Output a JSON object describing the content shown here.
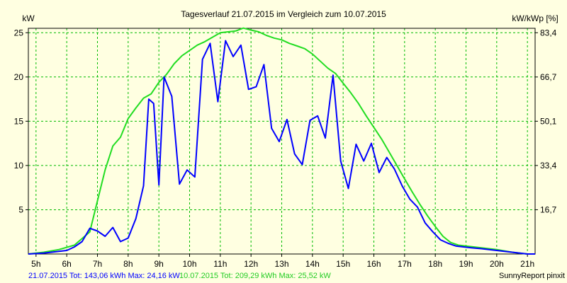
{
  "chart_data": {
    "type": "line",
    "title": "Tagesverlauf 21.07.2015 im Vergleich zum 10.07.2015",
    "y_left_unit": "kW",
    "y_right_unit": "kW/kWp [%]",
    "xlim": [
      4.75,
      21.25
    ],
    "ylim": [
      0,
      25.5
    ],
    "x_ticks": [
      5,
      6,
      7,
      8,
      9,
      10,
      11,
      12,
      13,
      14,
      15,
      16,
      17,
      18,
      19,
      20,
      21
    ],
    "x_tick_labels": [
      "5h",
      "6h",
      "7h",
      "8h",
      "9h",
      "10h",
      "11h",
      "12h",
      "13h",
      "14h",
      "15h",
      "16h",
      "17h",
      "18h",
      "19h",
      "20h",
      "21h"
    ],
    "y_left_ticks": [
      5,
      10,
      15,
      20,
      25
    ],
    "y_left_tick_labels": [
      "5",
      "10",
      "15",
      "20",
      "25"
    ],
    "y_right_ticks": [
      5,
      10,
      15,
      20,
      25
    ],
    "y_right_tick_labels": [
      "16,7",
      "33,4",
      "50,1",
      "66,7",
      "83,4"
    ],
    "grid": true,
    "series": [
      {
        "name": "21.07.2015",
        "color": "#0000ff",
        "x": [
          4.75,
          5.25,
          5.5,
          5.75,
          6.0,
          6.25,
          6.5,
          6.75,
          7.0,
          7.25,
          7.5,
          7.75,
          8.0,
          8.25,
          8.5,
          8.67,
          8.83,
          9.0,
          9.17,
          9.42,
          9.67,
          9.92,
          10.17,
          10.42,
          10.67,
          10.92,
          11.17,
          11.42,
          11.67,
          11.92,
          12.17,
          12.42,
          12.67,
          12.92,
          13.17,
          13.42,
          13.67,
          13.92,
          14.17,
          14.42,
          14.67,
          14.92,
          15.17,
          15.42,
          15.67,
          15.92,
          16.17,
          16.42,
          16.67,
          16.92,
          17.17,
          17.42,
          17.67,
          17.92,
          18.17,
          18.42,
          18.67,
          18.92,
          19.17,
          19.5,
          19.75,
          20.0,
          20.25,
          20.5,
          20.75,
          21.0,
          21.25
        ],
        "values": [
          0,
          0.1,
          0.2,
          0.3,
          0.4,
          0.8,
          1.4,
          2.9,
          2.6,
          2.0,
          3.0,
          1.4,
          1.8,
          4.0,
          7.7,
          17.5,
          17.0,
          7.8,
          20.0,
          17.8,
          7.9,
          9.5,
          8.7,
          22.0,
          23.8,
          17.2,
          24.1,
          22.3,
          23.6,
          18.6,
          18.9,
          21.4,
          14.2,
          12.7,
          15.2,
          11.3,
          10.1,
          15.1,
          15.6,
          13.1,
          20.2,
          10.5,
          7.4,
          12.4,
          10.5,
          12.5,
          9.2,
          10.9,
          9.6,
          7.7,
          6.2,
          5.3,
          3.5,
          2.5,
          1.6,
          1.2,
          0.9,
          0.8,
          0.7,
          0.6,
          0.5,
          0.4,
          0.3,
          0.2,
          0.1,
          0,
          0
        ]
      },
      {
        "name": "10.07.2015",
        "color": "#22dd22",
        "x": [
          4.75,
          5.25,
          5.75,
          6.25,
          6.75,
          7.0,
          7.25,
          7.5,
          7.75,
          8.0,
          8.25,
          8.5,
          8.75,
          9.0,
          9.25,
          9.5,
          9.75,
          10.0,
          10.25,
          10.5,
          10.75,
          11.0,
          11.25,
          11.5,
          11.75,
          12.0,
          12.25,
          12.5,
          12.75,
          13.0,
          13.25,
          13.5,
          13.75,
          14.0,
          14.25,
          14.5,
          14.75,
          15.0,
          15.25,
          15.5,
          15.75,
          16.0,
          16.25,
          16.5,
          16.75,
          17.0,
          17.25,
          17.5,
          17.75,
          18.0,
          18.25,
          18.5,
          18.75,
          19.0,
          19.25,
          19.5,
          19.75,
          20.0,
          20.25,
          20.5,
          20.75,
          21.0,
          21.25
        ],
        "values": [
          0,
          0.2,
          0.5,
          1.0,
          2.5,
          6.0,
          9.5,
          12.2,
          13.2,
          15.3,
          16.5,
          17.6,
          18.1,
          19.4,
          20.3,
          21.5,
          22.4,
          23.0,
          23.6,
          24.0,
          24.5,
          25.0,
          25.1,
          25.2,
          25.52,
          25.3,
          25.1,
          24.7,
          24.4,
          24.2,
          23.8,
          23.5,
          23.2,
          22.6,
          21.8,
          21.0,
          20.4,
          19.3,
          18.2,
          17.0,
          15.6,
          14.3,
          13.0,
          11.5,
          10.0,
          8.5,
          7.0,
          5.6,
          4.3,
          3.1,
          2.0,
          1.3,
          1.0,
          0.9,
          0.8,
          0.7,
          0.6,
          0.5,
          0.35,
          0.2,
          0.1,
          0,
          0
        ]
      }
    ],
    "footer": {
      "left_blue": "21.07.2015 Tot: 143,06 kWh Max: 24,16 kW",
      "left_green": "10.07.2015 Tot: 209,29 kWh Max: 25,52 kW",
      "right": "SunnyReport pinxit"
    }
  },
  "colors": {
    "background": "#ffffe1",
    "grid": "#00bb00",
    "axis": "#000000",
    "blue_series": "#0000ff",
    "green_series": "#22dd22"
  }
}
